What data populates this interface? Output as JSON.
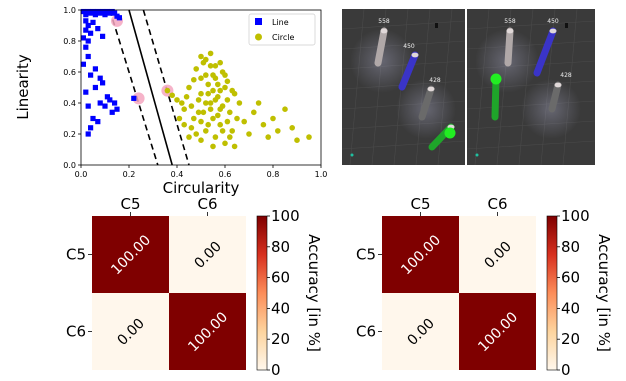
{
  "chart_data": [
    {
      "type": "scatter",
      "xlabel": "Circularity",
      "ylabel": "Linearity",
      "xlim": [
        0.0,
        1.0
      ],
      "ylim": [
        0.0,
        1.0
      ],
      "xticks": [
        "0.0",
        "0.2",
        "0.4",
        "0.6",
        "0.8",
        "1.0"
      ],
      "yticks": [
        "0.0",
        "0.2",
        "0.4",
        "0.6",
        "0.8",
        "1.0"
      ],
      "legend_position": "top-right",
      "series": [
        {
          "name": "Line",
          "marker": "square",
          "color": "#0000ff",
          "points": [
            [
              0.01,
              0.99
            ],
            [
              0.02,
              0.97
            ],
            [
              0.03,
              0.99
            ],
            [
              0.04,
              0.98
            ],
            [
              0.05,
              0.99
            ],
            [
              0.06,
              0.97
            ],
            [
              0.07,
              0.99
            ],
            [
              0.08,
              0.98
            ],
            [
              0.09,
              0.99
            ],
            [
              0.1,
              0.97
            ],
            [
              0.11,
              0.99
            ],
            [
              0.12,
              0.98
            ],
            [
              0.13,
              0.99
            ],
            [
              0.14,
              0.98
            ],
            [
              0.15,
              0.96
            ],
            [
              0.16,
              0.95
            ],
            [
              0.02,
              0.93
            ],
            [
              0.03,
              0.9
            ],
            [
              0.02,
              0.87
            ],
            [
              0.04,
              0.85
            ],
            [
              0.01,
              0.82
            ],
            [
              0.03,
              0.8
            ],
            [
              0.05,
              0.92
            ],
            [
              0.07,
              0.88
            ],
            [
              0.09,
              0.83
            ],
            [
              0.02,
              0.76
            ],
            [
              0.03,
              0.7
            ],
            [
              0.01,
              0.65
            ],
            [
              0.06,
              0.62
            ],
            [
              0.04,
              0.58
            ],
            [
              0.08,
              0.56
            ],
            [
              0.09,
              0.53
            ],
            [
              0.06,
              0.5
            ],
            [
              0.02,
              0.47
            ],
            [
              0.11,
              0.44
            ],
            [
              0.12,
              0.42
            ],
            [
              0.14,
              0.4
            ],
            [
              0.08,
              0.4
            ],
            [
              0.1,
              0.38
            ],
            [
              0.03,
              0.38
            ],
            [
              0.15,
              0.36
            ],
            [
              0.13,
              0.34
            ],
            [
              0.05,
              0.3
            ],
            [
              0.07,
              0.28
            ],
            [
              0.04,
              0.24
            ],
            [
              0.03,
              0.2
            ],
            [
              0.22,
              0.43
            ]
          ]
        },
        {
          "name": "Circle",
          "marker": "circle",
          "color": "#bfbf00",
          "points": [
            [
              0.36,
              0.48
            ],
            [
              0.38,
              0.45
            ],
            [
              0.4,
              0.42
            ],
            [
              0.42,
              0.4
            ],
            [
              0.41,
              0.3
            ],
            [
              0.43,
              0.36
            ],
            [
              0.44,
              0.44
            ],
            [
              0.45,
              0.5
            ],
            [
              0.46,
              0.38
            ],
            [
              0.47,
              0.55
            ],
            [
              0.48,
              0.62
            ],
            [
              0.49,
              0.34
            ],
            [
              0.5,
              0.7
            ],
            [
              0.51,
              0.66
            ],
            [
              0.5,
              0.46
            ],
            [
              0.52,
              0.58
            ],
            [
              0.53,
              0.52
            ],
            [
              0.54,
              0.64
            ],
            [
              0.55,
              0.48
            ],
            [
              0.54,
              0.4
            ],
            [
              0.56,
              0.56
            ],
            [
              0.57,
              0.44
            ],
            [
              0.58,
              0.36
            ],
            [
              0.55,
              0.3
            ],
            [
              0.53,
              0.26
            ],
            [
              0.52,
              0.22
            ],
            [
              0.5,
              0.28
            ],
            [
              0.48,
              0.2
            ],
            [
              0.46,
              0.24
            ],
            [
              0.59,
              0.6
            ],
            [
              0.6,
              0.5
            ],
            [
              0.61,
              0.42
            ],
            [
              0.62,
              0.34
            ],
            [
              0.58,
              0.26
            ],
            [
              0.56,
              0.18
            ],
            [
              0.6,
              0.14
            ],
            [
              0.63,
              0.22
            ],
            [
              0.65,
              0.3
            ],
            [
              0.64,
              0.46
            ],
            [
              0.66,
              0.4
            ],
            [
              0.68,
              0.28
            ],
            [
              0.7,
              0.2
            ],
            [
              0.72,
              0.34
            ],
            [
              0.74,
              0.4
            ],
            [
              0.76,
              0.26
            ],
            [
              0.78,
              0.18
            ],
            [
              0.8,
              0.3
            ],
            [
              0.82,
              0.22
            ],
            [
              0.85,
              0.36
            ],
            [
              0.88,
              0.24
            ],
            [
              0.9,
              0.16
            ],
            [
              0.95,
              0.18
            ],
            [
              0.57,
              0.52
            ],
            [
              0.59,
              0.38
            ],
            [
              0.51,
              0.34
            ],
            [
              0.49,
              0.42
            ],
            [
              0.53,
              0.46
            ],
            [
              0.55,
              0.58
            ],
            [
              0.56,
              0.64
            ],
            [
              0.52,
              0.68
            ],
            [
              0.54,
              0.72
            ],
            [
              0.58,
              0.66
            ],
            [
              0.61,
              0.28
            ],
            [
              0.57,
              0.32
            ],
            [
              0.59,
              0.22
            ],
            [
              0.62,
              0.18
            ],
            [
              0.64,
              0.12
            ],
            [
              0.55,
              0.12
            ],
            [
              0.5,
              0.16
            ],
            [
              0.45,
              0.18
            ],
            [
              0.47,
              0.3
            ],
            [
              0.43,
              0.26
            ],
            [
              0.61,
              0.54
            ],
            [
              0.63,
              0.48
            ],
            [
              0.6,
              0.58
            ],
            [
              0.58,
              0.48
            ],
            [
              0.56,
              0.42
            ],
            [
              0.54,
              0.36
            ],
            [
              0.52,
              0.4
            ],
            [
              0.5,
              0.56
            ]
          ]
        }
      ],
      "highlighted_points": [
        [
          0.15,
          0.93
        ],
        [
          0.24,
          0.43
        ],
        [
          0.36,
          0.48
        ]
      ],
      "boundary_lines": [
        {
          "style": "dashed",
          "points": [
            [
              0.12,
              1.0
            ],
            [
              0.32,
              0.0
            ]
          ]
        },
        {
          "style": "solid",
          "points": [
            [
              0.2,
              1.0
            ],
            [
              0.38,
              0.0
            ]
          ]
        },
        {
          "style": "dashed",
          "points": [
            [
              0.26,
              1.0
            ],
            [
              0.45,
              0.0
            ]
          ]
        }
      ]
    },
    {
      "type": "heatmap",
      "x_categories": [
        "C5",
        "C6"
      ],
      "y_categories": [
        "C5",
        "C6"
      ],
      "values": [
        [
          100.0,
          0.0
        ],
        [
          0.0,
          100.0
        ]
      ],
      "cell_labels": [
        [
          "100.00",
          "0.00"
        ],
        [
          "0.00",
          "100.00"
        ]
      ],
      "colorbar_label": "Accuracy [in %]",
      "colorbar_ticks": [
        "0",
        "20",
        "40",
        "60",
        "80",
        "100"
      ],
      "colorbar_range": [
        0,
        100
      ],
      "colormap": [
        "#fff7ec",
        "#fdd49e",
        "#fc8d59",
        "#d7301f",
        "#7f0000"
      ]
    },
    {
      "type": "heatmap",
      "x_categories": [
        "C5",
        "C6"
      ],
      "y_categories": [
        "C5",
        "C6"
      ],
      "values": [
        [
          100.0,
          0.0
        ],
        [
          0.0,
          100.0
        ]
      ],
      "cell_labels": [
        [
          "100.00",
          "0.00"
        ],
        [
          "0.00",
          "100.00"
        ]
      ],
      "colorbar_label": "Accuracy [in %]",
      "colorbar_ticks": [
        "0",
        "20",
        "40",
        "60",
        "80",
        "100"
      ],
      "colorbar_range": [
        0,
        100
      ],
      "colormap": [
        "#fff7ec",
        "#fdd49e",
        "#fc8d59",
        "#d7301f",
        "#7f0000"
      ]
    }
  ],
  "views": {
    "background": "#3a3a3a",
    "panels": [
      {
        "labels": [
          "558",
          "450",
          "428"
        ],
        "objects": [
          {
            "label": "558",
            "color": "#b0a8a8",
            "kind": "cylinder"
          },
          {
            "label": "450",
            "color": "#3a34c8",
            "kind": "cylinder"
          },
          {
            "label": "428",
            "color": "#6a6a6a",
            "kind": "cylinder"
          },
          {
            "label": "",
            "color": "#1fa52a",
            "kind": "cylinder-with-sphere"
          }
        ]
      },
      {
        "labels": [
          "558",
          "450",
          "428"
        ],
        "objects": [
          {
            "label": "558",
            "color": "#b0a8a8",
            "kind": "cylinder"
          },
          {
            "label": "450",
            "color": "#3a34c8",
            "kind": "cylinder"
          },
          {
            "label": "428",
            "color": "#6a6a6a",
            "kind": "cylinder"
          },
          {
            "label": "",
            "color": "#1fa52a",
            "kind": "cylinder-with-sphere"
          }
        ]
      }
    ]
  }
}
